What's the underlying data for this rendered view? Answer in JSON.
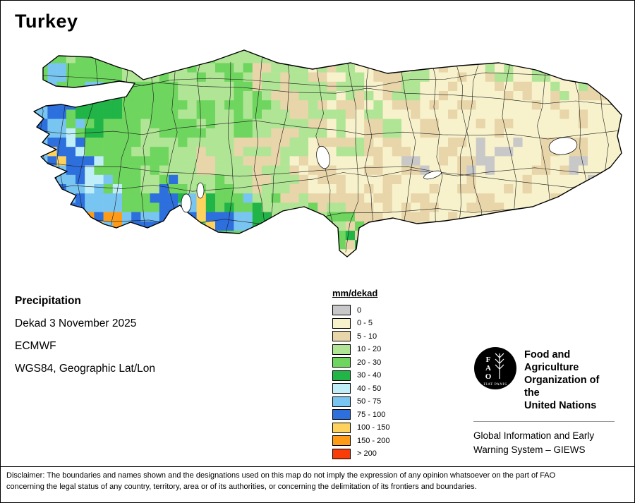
{
  "title": "Turkey",
  "info": {
    "layer": "Precipitation",
    "period": "Dekad 3 November 2025",
    "source": "ECMWF",
    "projection": "WGS84, Geographic Lat/Lon"
  },
  "legend": {
    "title": "mm/dekad",
    "entries": [
      {
        "code": "0",
        "label": "0",
        "color": "#c8c8c8"
      },
      {
        "code": "1",
        "label": "0 - 5",
        "color": "#f7f2cb"
      },
      {
        "code": "2",
        "label": "5 - 10",
        "color": "#e8d5a9"
      },
      {
        "code": "3",
        "label": "10 - 20",
        "color": "#b0e595"
      },
      {
        "code": "4",
        "label": "20 - 30",
        "color": "#6ed55e"
      },
      {
        "code": "5",
        "label": "30 - 40",
        "color": "#21b447"
      },
      {
        "code": "6",
        "label": "40 - 50",
        "color": "#bfeef8"
      },
      {
        "code": "7",
        "label": "50 - 75",
        "color": "#79c5f1"
      },
      {
        "code": "8",
        "label": "75 - 100",
        "color": "#2c6fdd"
      },
      {
        "code": "9",
        "label": "100 - 150",
        "color": "#ffd25e"
      },
      {
        "code": "A",
        "label": "150 - 200",
        "color": "#ff9b17"
      },
      {
        "code": "B",
        "label": "> 200",
        "color": "#fa3c09"
      }
    ]
  },
  "map": {
    "grid": {
      "cols": 32,
      "rows": 12,
      "cells": [
        "04343313343331213113111111111111",
        "47444334334323321321131123131211",
        "47474454333432332312312111211321",
        "78555444343343231231211211112111",
        "87454434433433323123121112111111",
        "78644433433232312312112110111211",
        "79864443323323121121201201121011",
        "78764434334323212112111211211100",
        "47877448754432323212121121112101",
        "1479A788898754343421211211111111",
        "11787878544433334521111111111111",
        "11111111111111111411111111111111"
      ]
    }
  },
  "footer": {
    "logo_letters": [
      "F",
      "A",
      "O"
    ],
    "logo_motto": "FIAT PANIS",
    "fao_name_lines": [
      "Food and Agriculture",
      "Organization of the",
      "United Nations"
    ],
    "giews_lines": [
      "Global Information and Early",
      "Warning System – GIEWS"
    ]
  },
  "disclaimer_lines": [
    "Disclaimer: The boundaries and names shown and the designations used on this map do not imply the expression of any opinion whatsoever on the part of FAO",
    "concerning the legal status of any country, territory, area or of its authorities, or concerning the delimitation of its frontiers and boundaries."
  ]
}
